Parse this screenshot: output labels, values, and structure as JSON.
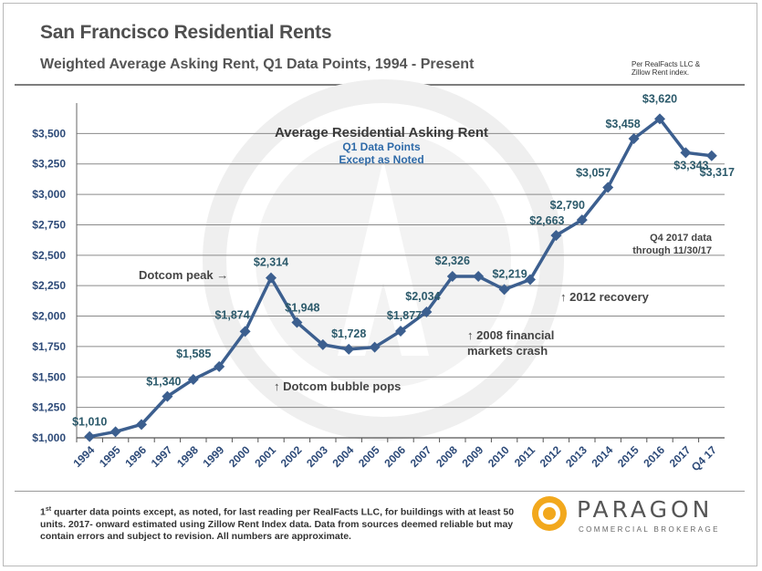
{
  "header": {
    "title": "San Francisco Residential Rents",
    "subtitle": "Weighted Average Asking Rent, Q1 Data Points, 1994 - Present",
    "source_line1": "Per RealFacts LLC &",
    "source_line2": "Zillow Rent index."
  },
  "footer": {
    "footnote_sup": "st",
    "footnote_lead": "1",
    "footnote_text": " quarter data points except, as noted, for last reading per RealFacts LLC, for buildings with at least 50 units. 2017- onward estimated using Zillow Rent Index data. Data from sources deemed reliable but may contain errors and subject to revision. All numbers are approximate.",
    "brand": "PARAGON",
    "brand_sub": "COMMERCIAL BROKERAGE"
  },
  "chart_data": {
    "type": "line",
    "title": "Average Residential Asking Rent",
    "subtitle_lines": [
      "Q1 Data Points",
      "Except as Noted"
    ],
    "categories": [
      "1994",
      "1995",
      "1996",
      "1997",
      "1998",
      "1999",
      "2000",
      "2001",
      "2002",
      "2003",
      "2004",
      "2005",
      "2006",
      "2007",
      "2008",
      "2009",
      "2010",
      "2011",
      "2012",
      "2013",
      "2014",
      "2015",
      "2016",
      "2017",
      "Q4 17"
    ],
    "series": [
      {
        "values": [
          1010,
          1050,
          1110,
          1340,
          1480,
          1585,
          1874,
          2314,
          1948,
          1765,
          1728,
          1745,
          1877,
          2034,
          2326,
          2326,
          2219,
          2300,
          2663,
          2790,
          3057,
          3458,
          3620,
          3343,
          3317
        ],
        "color": "#3c5f8f"
      }
    ],
    "data_labels": [
      {
        "index": 0,
        "text": "$1,010"
      },
      {
        "index": 3,
        "text": "$1,340"
      },
      {
        "index": 5,
        "text": "$1,585"
      },
      {
        "index": 6,
        "text": "$1,874"
      },
      {
        "index": 7,
        "text": "$2,314"
      },
      {
        "index": 8,
        "text": "$1,948"
      },
      {
        "index": 10,
        "text": "$1,728"
      },
      {
        "index": 12,
        "text": "$1,877"
      },
      {
        "index": 13,
        "text": "$2,034"
      },
      {
        "index": 14,
        "text": "$2,326"
      },
      {
        "index": 16,
        "text": "$2,219"
      },
      {
        "index": 18,
        "text": "$2,663"
      },
      {
        "index": 19,
        "text": "$2,790"
      },
      {
        "index": 20,
        "text": "$3,057"
      },
      {
        "index": 21,
        "text": "$3,458"
      },
      {
        "index": 22,
        "text": "$3,620"
      },
      {
        "index": 23,
        "text": "$3,343"
      },
      {
        "index": 24,
        "text": "$3,317"
      }
    ],
    "yticks": [
      1000,
      1250,
      1500,
      1750,
      2000,
      2250,
      2500,
      2750,
      3000,
      3250,
      3500
    ],
    "ytick_labels": [
      "$1,000",
      "$1,250",
      "$1,500",
      "$1,750",
      "$2,000",
      "$2,250",
      "$2,500",
      "$2,750",
      "$3,000",
      "$3,250",
      "$3,500"
    ],
    "ylim": [
      1000,
      3750
    ],
    "grid": true,
    "annotations": {
      "dotcom_peak": "Dotcom peak →",
      "dotcom_pops": "↑ Dotcom bubble pops",
      "crash_line1": "↑ 2008 financial",
      "crash_line2": "markets crash",
      "recovery": "↑ 2012 recovery",
      "q4_line1": "Q4 2017 data",
      "q4_line2": "through 11/30/17"
    }
  }
}
